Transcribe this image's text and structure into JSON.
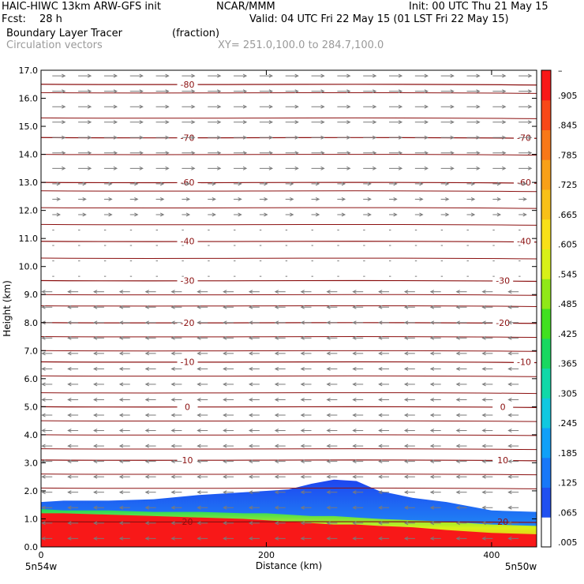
{
  "header": {
    "title_left": "HAIC-HIWC 13km ARW-GFS init",
    "source": "NCAR/MMM",
    "init": "Init: 00 UTC Thu 21 May 15",
    "fcst_label": "Fcst:",
    "fcst_value": "28 h",
    "valid": "Valid: 04 UTC Fri 22 May 15 (01 LST Fri 22 May 15)",
    "field1_name": "Boundary Layer Tracer",
    "field1_units": "(fraction)",
    "field2_name": "Circulation vectors",
    "xsec": "XY= 251.0,100.0 to 284.7,100.0"
  },
  "chart_data": {
    "type": "heatmap",
    "title": "Boundary Layer Tracer (fraction)",
    "xlabel": "Distance (km)",
    "ylabel": "Height (km)",
    "xlim": [
      0,
      440
    ],
    "ylim": [
      0,
      17
    ],
    "x_ticks": [
      0,
      200,
      400
    ],
    "y_ticks": [
      "0.0",
      "1.0",
      "2.0",
      "3.0",
      "4.0",
      "5.0",
      "6.0",
      "7.0",
      "8.0",
      "9.0",
      "10.0",
      "11.0",
      "12.0",
      "13.0",
      "14.0",
      "15.0",
      "16.0",
      "17.0"
    ],
    "x_end_labels": {
      "left": "5n54w",
      "right": "5n50w"
    },
    "colorbar": {
      "labels": [
        ".005",
        ".065",
        ".125",
        ".185",
        ".245",
        ".305",
        ".365",
        ".425",
        ".485",
        ".545",
        ".605",
        ".665",
        ".725",
        ".785",
        ".845",
        ".905"
      ],
      "top_label": "–",
      "colors": [
        "#ffffff",
        "#2050f0",
        "#1878f8",
        "#10a0f8",
        "#10c8e0",
        "#10d8a8",
        "#18d860",
        "#40e020",
        "#90e818",
        "#d8f018",
        "#f8e018",
        "#f8c018",
        "#f8a018",
        "#f87818",
        "#f84818",
        "#f81818"
      ]
    },
    "tracer_shading": {
      "description_levels": "height of tracer top in km vs distance",
      "x": [
        0,
        20,
        60,
        100,
        140,
        180,
        200,
        220,
        240,
        260,
        280,
        300,
        330,
        360,
        400,
        440
      ],
      "red_top": [
        1.2,
        1.2,
        1.15,
        1.1,
        1.05,
        1.0,
        0.95,
        0.9,
        0.85,
        0.8,
        0.8,
        0.75,
        0.7,
        0.6,
        0.5,
        0.45
      ],
      "green_top": [
        1.35,
        1.3,
        1.3,
        1.25,
        1.25,
        1.2,
        1.2,
        1.15,
        1.1,
        1.1,
        1.05,
        1.0,
        0.95,
        0.9,
        0.8,
        0.75
      ],
      "blue_top": [
        1.6,
        1.65,
        1.65,
        1.7,
        1.85,
        1.95,
        2.0,
        2.05,
        2.25,
        2.4,
        2.35,
        2.0,
        1.75,
        1.6,
        1.3,
        1.25
      ]
    },
    "temperature_contours": [
      {
        "label": "-80",
        "h": 16.5,
        "label_positions": [
          130
        ]
      },
      {
        "label": "-70",
        "h": 14.6,
        "label_positions": [
          130,
          440
        ]
      },
      {
        "label": "-60",
        "h": 13.0,
        "label_positions": [
          130,
          440
        ]
      },
      {
        "label": "-40",
        "h": 10.9,
        "label_positions": [
          130,
          440
        ]
      },
      {
        "label": "-30",
        "h": 9.5,
        "label_positions": [
          130,
          410
        ]
      },
      {
        "label": "-20",
        "h": 8.0,
        "label_positions": [
          130,
          410
        ]
      },
      {
        "label": "-10",
        "h": 6.6,
        "label_positions": [
          130,
          440
        ]
      },
      {
        "label": "0",
        "h": 5.0,
        "label_positions": [
          130,
          410
        ]
      },
      {
        "label": "10",
        "h": 3.1,
        "label_positions": [
          130,
          410
        ]
      },
      {
        "label": "20",
        "h": 0.9,
        "label_positions": [
          130,
          410
        ]
      }
    ],
    "extra_contour_heights": [
      16.2,
      15.3,
      14.0,
      12.7,
      12.1,
      11.5,
      10.3,
      9.0,
      8.6,
      7.5,
      7.0,
      6.1,
      5.5,
      4.5,
      4.0,
      3.5,
      2.6,
      2.1
    ],
    "wind_vectors": {
      "note": "u component (km-axis units) by height band",
      "levels": [
        {
          "h_from": 13.0,
          "h_to": 17.0,
          "u": 1.0
        },
        {
          "h_from": 11.5,
          "h_to": 13.0,
          "u": 0.6
        },
        {
          "h_from": 9.5,
          "h_to": 11.5,
          "u": 0.15
        },
        {
          "h_from": 0.0,
          "h_to": 9.5,
          "u": -0.8
        }
      ]
    },
    "colors": {
      "contour": "#8b1010",
      "vector": "#7a7a7a",
      "frame": "#000000"
    }
  }
}
